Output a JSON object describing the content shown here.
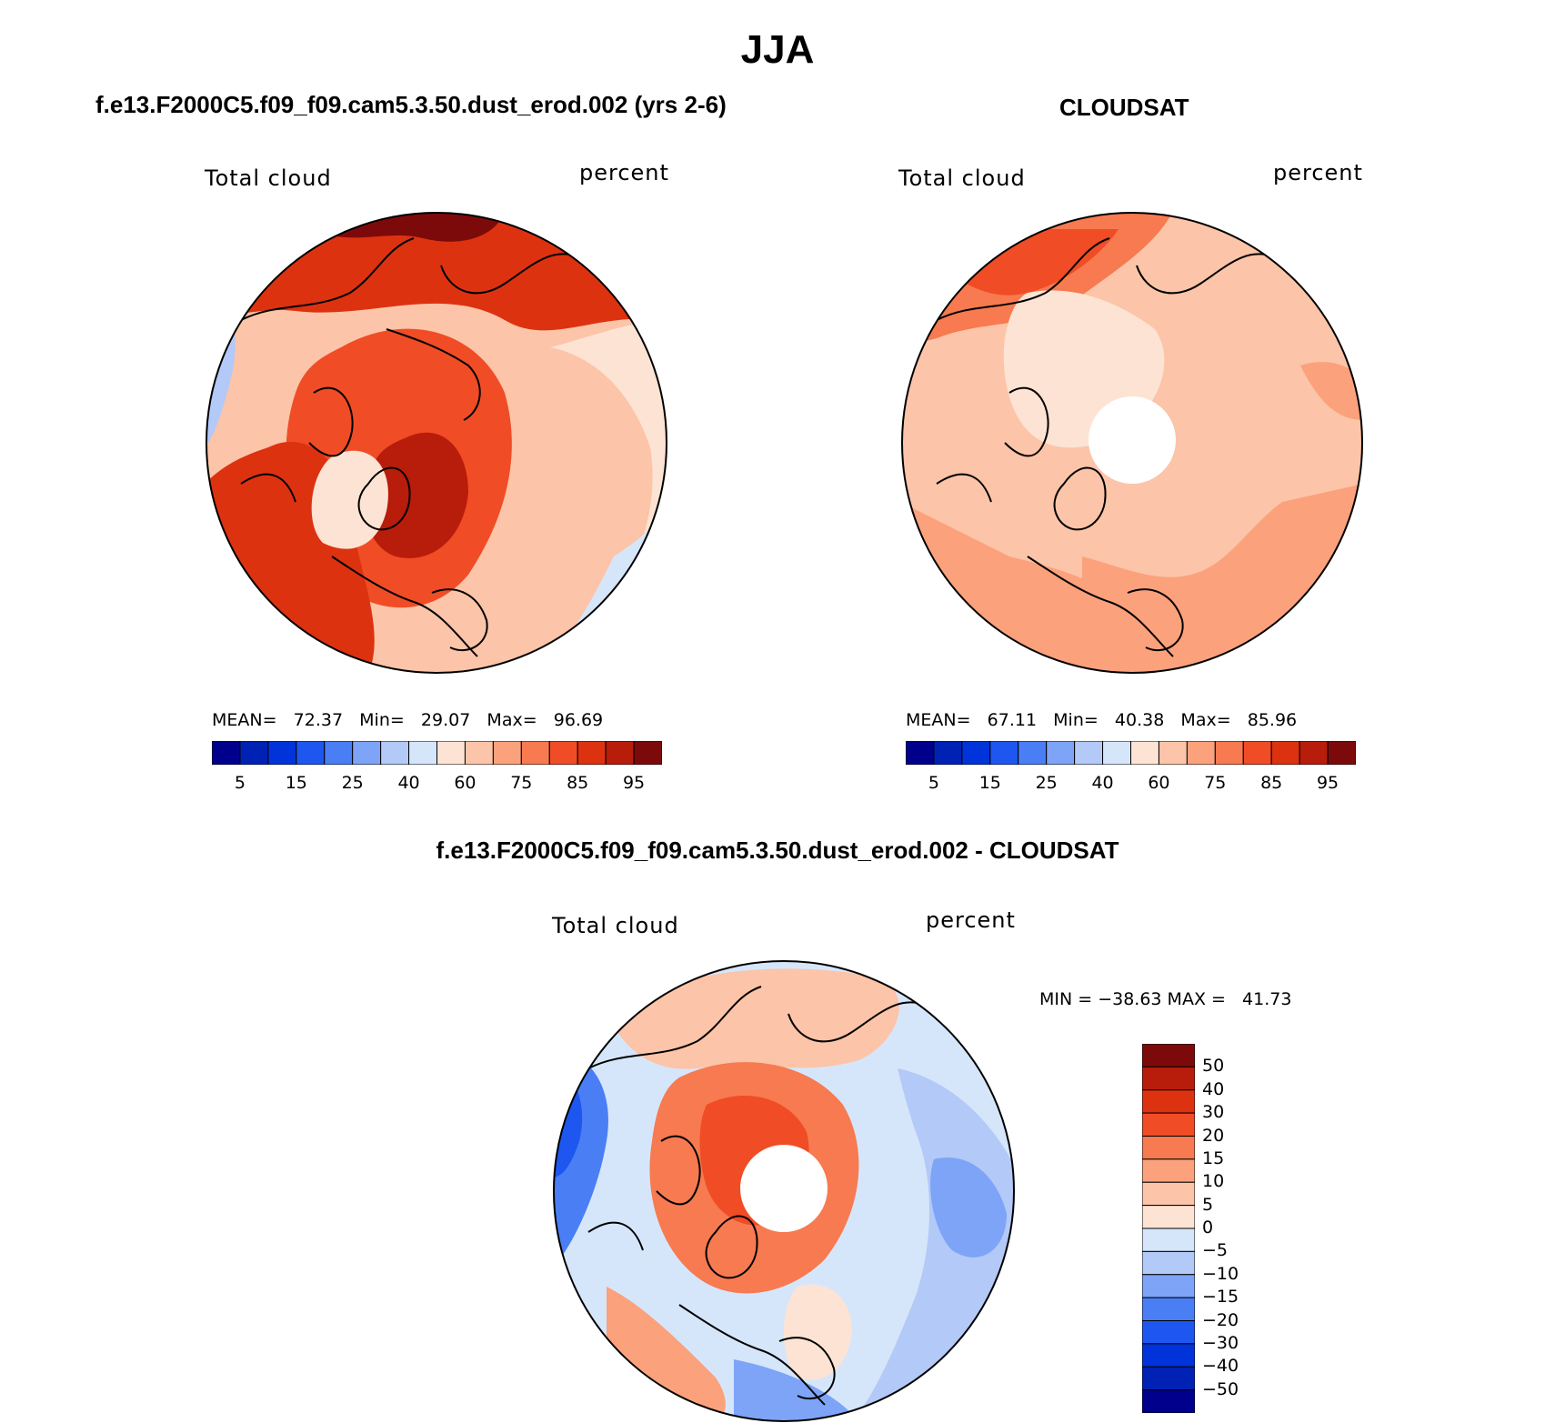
{
  "figure": {
    "title": "JJA"
  },
  "panels": [
    {
      "title": "f.e13.F2000C5.f09_f09.cam5.3.50.dust_erod.002 (yrs 2-6)",
      "left_label": "Total cloud",
      "right_label": "percent",
      "stats": "MEAN=   72.37   Min=   29.07   Max=   96.69",
      "projection": "polar-stereographic-north",
      "pole_mask": false,
      "palette": "warm"
    },
    {
      "title": "CLOUDSAT",
      "left_label": "Total cloud",
      "right_label": "percent",
      "stats": "MEAN=   67.11   Min=   40.38   Max=   85.96",
      "projection": "polar-stereographic-north",
      "pole_mask": true,
      "palette": "warm"
    },
    {
      "title": "f.e13.F2000C5.f09_f09.cam5.3.50.dust_erod.002 - CLOUDSAT",
      "left_label": "Total cloud",
      "right_label": "percent",
      "stats": "MIN = −38.63 MAX =   41.73",
      "projection": "polar-stereographic-north",
      "pole_mask": true,
      "palette": "diverging"
    }
  ],
  "colorbar_abs": {
    "colors": [
      "#00008c",
      "#0022b4",
      "#0033d9",
      "#1e56f0",
      "#4a7ef5",
      "#7ea4f7",
      "#b3c9f7",
      "#d6e6fa",
      "#fde3d3",
      "#fcc4a8",
      "#fba17c",
      "#f77a50",
      "#f04c26",
      "#dd3210",
      "#b81c0b",
      "#7d0a0a"
    ],
    "tick_labels": [
      "5",
      "15",
      "25",
      "40",
      "60",
      "75",
      "85",
      "95"
    ]
  },
  "colorbar_diff": {
    "colors": [
      "#7d0a0a",
      "#b81c0b",
      "#dd3210",
      "#f04c26",
      "#f77a50",
      "#fba17c",
      "#fcc4a8",
      "#fde3d3",
      "#d6e6fa",
      "#b3c9f7",
      "#7ea4f7",
      "#4a7ef5",
      "#1e56f0",
      "#0033d9",
      "#0022b4",
      "#00008c"
    ],
    "tick_labels": [
      "50",
      "40",
      "30",
      "20",
      "15",
      "10",
      "5",
      "0",
      "−5",
      "−10",
      "−15",
      "−20",
      "−30",
      "−40",
      "−50"
    ]
  }
}
